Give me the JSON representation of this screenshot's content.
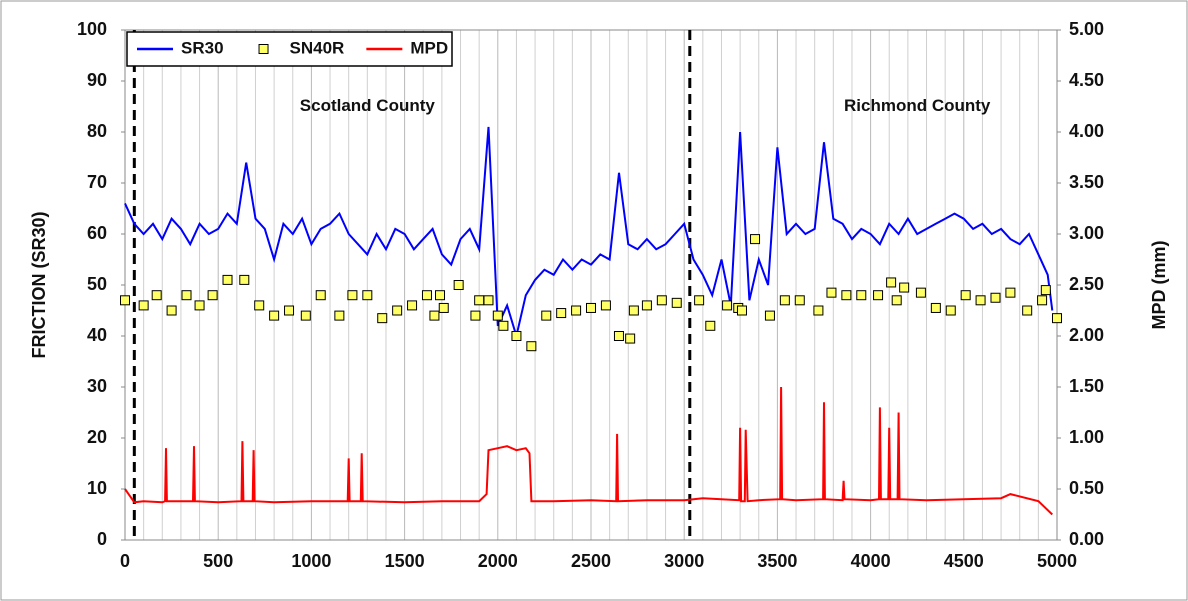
{
  "chart_data": {
    "type": "line",
    "xlim": [
      0,
      5000
    ],
    "xticks": [
      0,
      500,
      1000,
      1500,
      2000,
      2500,
      3000,
      3500,
      4000,
      4500,
      5000
    ],
    "x_minor_ticks": [
      100,
      200,
      300,
      400,
      600,
      700,
      800,
      900,
      1100,
      1200,
      1300,
      1400,
      1600,
      1700,
      1800,
      1900,
      2100,
      2200,
      2300,
      2400,
      2600,
      2700,
      2800,
      2900,
      3100,
      3200,
      3300,
      3400,
      3600,
      3700,
      3800,
      3900,
      4100,
      4200,
      4300,
      4400,
      4600,
      4700,
      4800,
      4900
    ],
    "ylim": [
      0,
      100
    ],
    "yticks": [
      0,
      10,
      20,
      30,
      40,
      50,
      60,
      70,
      80,
      90,
      100
    ],
    "y2lim": [
      0,
      5
    ],
    "y2ticks": [
      {
        "value": 0,
        "label": "0.00"
      },
      {
        "value": 0.5,
        "label": "0.50"
      },
      {
        "value": 1,
        "label": "1.00"
      },
      {
        "value": 1.5,
        "label": "1.50"
      },
      {
        "value": 2,
        "label": "2.00"
      },
      {
        "value": 2.5,
        "label": "2.50"
      },
      {
        "value": 3,
        "label": "3.00"
      },
      {
        "value": 3.5,
        "label": "3.50"
      },
      {
        "value": 4,
        "label": "4.00"
      },
      {
        "value": 4.5,
        "label": "4.50"
      },
      {
        "value": 5,
        "label": "5.00"
      }
    ],
    "ylabel": "FRICTION (SR30)",
    "y2label": "MPD (mm)",
    "grid": true,
    "legend": "top-left",
    "vlines": [
      50,
      3030
    ],
    "annotations": [
      {
        "text": "Scotland County",
        "x": 1300,
        "y": 85
      },
      {
        "text": "Richmond County",
        "x": 4250,
        "y": 85
      }
    ],
    "series": [
      {
        "name": "SR30",
        "type": "line",
        "color": "#0000ff",
        "x": [
          0,
          50,
          100,
          150,
          200,
          250,
          300,
          350,
          400,
          450,
          500,
          550,
          600,
          650,
          700,
          750,
          800,
          850,
          900,
          950,
          1000,
          1050,
          1100,
          1150,
          1200,
          1250,
          1300,
          1350,
          1400,
          1450,
          1500,
          1550,
          1600,
          1650,
          1700,
          1750,
          1800,
          1850,
          1900,
          1950,
          2000,
          2050,
          2100,
          2150,
          2200,
          2250,
          2300,
          2350,
          2400,
          2450,
          2500,
          2550,
          2600,
          2650,
          2700,
          2750,
          2800,
          2850,
          2900,
          2950,
          3000,
          3050,
          3100,
          3150,
          3200,
          3250,
          3300,
          3350,
          3400,
          3450,
          3500,
          3550,
          3600,
          3650,
          3700,
          3750,
          3800,
          3850,
          3900,
          3950,
          4000,
          4050,
          4100,
          4150,
          4200,
          4250,
          4300,
          4350,
          4400,
          4450,
          4500,
          4550,
          4600,
          4650,
          4700,
          4750,
          4800,
          4850,
          4900,
          4950,
          4975
        ],
        "values": [
          66,
          62,
          60,
          62,
          59,
          63,
          61,
          58,
          62,
          60,
          61,
          64,
          62,
          74,
          63,
          61,
          55,
          62,
          60,
          63,
          58,
          61,
          62,
          64,
          60,
          58,
          56,
          60,
          57,
          61,
          60,
          57,
          59,
          61,
          56,
          54,
          59,
          61,
          57,
          81,
          42,
          46,
          40,
          48,
          51,
          53,
          52,
          55,
          53,
          55,
          54,
          56,
          55,
          72,
          58,
          57,
          59,
          57,
          58,
          60,
          62,
          55,
          52,
          48,
          55,
          46,
          80,
          47,
          55,
          50,
          77,
          60,
          62,
          60,
          61,
          78,
          63,
          62,
          59,
          61,
          60,
          58,
          62,
          60,
          63,
          60,
          61,
          62,
          63,
          64,
          63,
          61,
          62,
          60,
          61,
          59,
          58,
          60,
          56,
          52,
          45
        ]
      },
      {
        "name": "SN40R",
        "type": "scatter",
        "color": "#ffff66",
        "x": [
          0,
          100,
          170,
          250,
          330,
          400,
          470,
          550,
          640,
          720,
          800,
          880,
          970,
          1050,
          1150,
          1220,
          1300,
          1380,
          1460,
          1540,
          1620,
          1660,
          1690,
          1710,
          1790,
          1880,
          1900,
          1950,
          2000,
          2030,
          2100,
          2180,
          2260,
          2340,
          2420,
          2500,
          2580,
          2650,
          2710,
          2730,
          2800,
          2880,
          2960,
          3080,
          3140,
          3230,
          3290,
          3310,
          3380,
          3460,
          3540,
          3620,
          3720,
          3790,
          3870,
          3950,
          4040,
          4110,
          4140,
          4180,
          4270,
          4350,
          4430,
          4510,
          4590,
          4670,
          4750,
          4840,
          4920,
          4940,
          5000
        ],
        "values": [
          47,
          46,
          48,
          45,
          48,
          46,
          48,
          51,
          51,
          46,
          44,
          45,
          44,
          48,
          44,
          48,
          48,
          43.5,
          45,
          46,
          48,
          44,
          48,
          45.5,
          50,
          44,
          47,
          47,
          44,
          42,
          40,
          38,
          44,
          44.5,
          45,
          45.5,
          46,
          40,
          39.5,
          45,
          46,
          47,
          46.5,
          47,
          42,
          46,
          45.5,
          45,
          59,
          44,
          47,
          47,
          45,
          48.5,
          48,
          48,
          48,
          50.5,
          47,
          49.5,
          48.5,
          45.5,
          45,
          48,
          47,
          47.5,
          48.5,
          45,
          47,
          49,
          43.5
        ]
      },
      {
        "name": "MPD",
        "type": "line",
        "axis": "y2",
        "color": "#ff0000",
        "x": [
          0,
          50,
          100,
          200,
          215,
          220,
          225,
          300,
          365,
          370,
          375,
          500,
          625,
          630,
          635,
          685,
          690,
          695,
          800,
          1000,
          1195,
          1200,
          1205,
          1265,
          1270,
          1275,
          1500,
          1700,
          1900,
          1940,
          1950,
          2000,
          2050,
          2100,
          2150,
          2170,
          2180,
          2300,
          2500,
          2635,
          2640,
          2645,
          2800,
          3000,
          3100,
          3200,
          3295,
          3300,
          3305,
          3325,
          3330,
          3340,
          3400,
          3515,
          3520,
          3525,
          3600,
          3745,
          3750,
          3755,
          3850,
          3855,
          3860,
          4000,
          4045,
          4050,
          4055,
          4095,
          4100,
          4105,
          4145,
          4150,
          4155,
          4300,
          4500,
          4700,
          4750,
          4900,
          4975
        ],
        "values": [
          0.5,
          0.37,
          0.38,
          0.37,
          0.38,
          0.9,
          0.38,
          0.38,
          0.38,
          0.92,
          0.38,
          0.37,
          0.38,
          0.97,
          0.38,
          0.38,
          0.88,
          0.38,
          0.37,
          0.38,
          0.38,
          0.8,
          0.38,
          0.38,
          0.85,
          0.38,
          0.37,
          0.38,
          0.38,
          0.45,
          0.88,
          0.9,
          0.92,
          0.88,
          0.9,
          0.85,
          0.38,
          0.38,
          0.39,
          0.38,
          1.04,
          0.38,
          0.39,
          0.39,
          0.41,
          0.4,
          0.39,
          1.1,
          0.38,
          0.38,
          1.08,
          0.38,
          0.39,
          0.4,
          1.5,
          0.4,
          0.39,
          0.4,
          1.35,
          0.4,
          0.39,
          0.58,
          0.4,
          0.39,
          0.4,
          1.3,
          0.4,
          0.4,
          1.1,
          0.4,
          0.4,
          1.25,
          0.4,
          0.39,
          0.4,
          0.41,
          0.45,
          0.38,
          0.25
        ]
      }
    ]
  }
}
